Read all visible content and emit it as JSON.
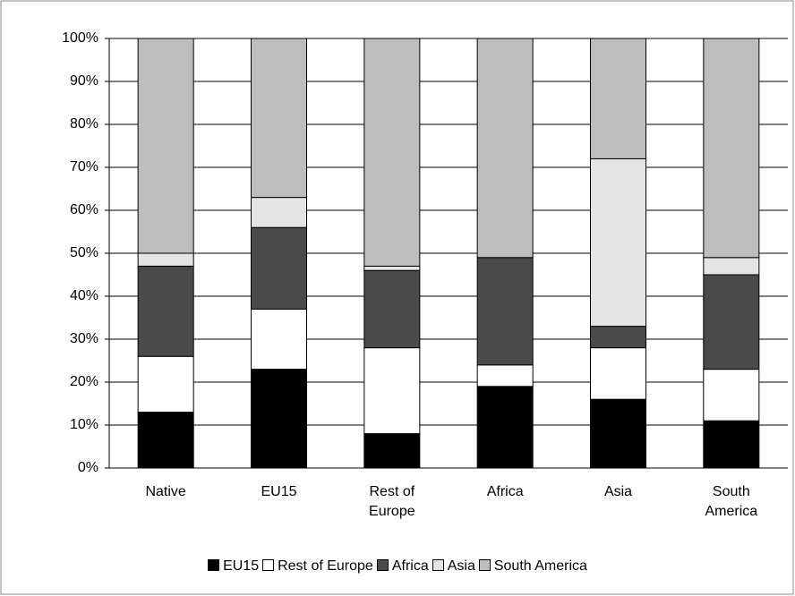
{
  "chart_data": {
    "type": "stacked_bar",
    "categories": [
      "Native",
      "EU15",
      "Rest of Europe",
      "Africa",
      "Asia",
      "South America"
    ],
    "series": [
      {
        "name": "EU15",
        "color": "#000000",
        "values": [
          13,
          23,
          8,
          19,
          16,
          11
        ]
      },
      {
        "name": "Rest of Europe",
        "color": "#ffffff",
        "values": [
          13,
          14,
          20,
          5,
          12,
          12
        ]
      },
      {
        "name": "Africa",
        "color": "#4a4a4a",
        "values": [
          21,
          19,
          18,
          25,
          5,
          22
        ]
      },
      {
        "name": "Asia",
        "color": "#e4e4e4",
        "values": [
          3,
          7,
          1,
          0,
          39,
          4
        ]
      },
      {
        "name": "South America",
        "color": "#bdbdbd",
        "values": [
          50,
          37,
          53,
          51,
          28,
          51
        ]
      }
    ],
    "ylim": [
      0,
      100
    ],
    "yticks": [
      {
        "value": 0,
        "label": "0%"
      },
      {
        "value": 10,
        "label": "10%"
      },
      {
        "value": 20,
        "label": "20%"
      },
      {
        "value": 30,
        "label": "30%"
      },
      {
        "value": 40,
        "label": "40%"
      },
      {
        "value": 50,
        "label": "50%"
      },
      {
        "value": 60,
        "label": "60%"
      },
      {
        "value": 70,
        "label": "70%"
      },
      {
        "value": 80,
        "label": "80%"
      },
      {
        "value": 90,
        "label": "90%"
      },
      {
        "value": 100,
        "label": "100%"
      }
    ],
    "grid": true
  }
}
